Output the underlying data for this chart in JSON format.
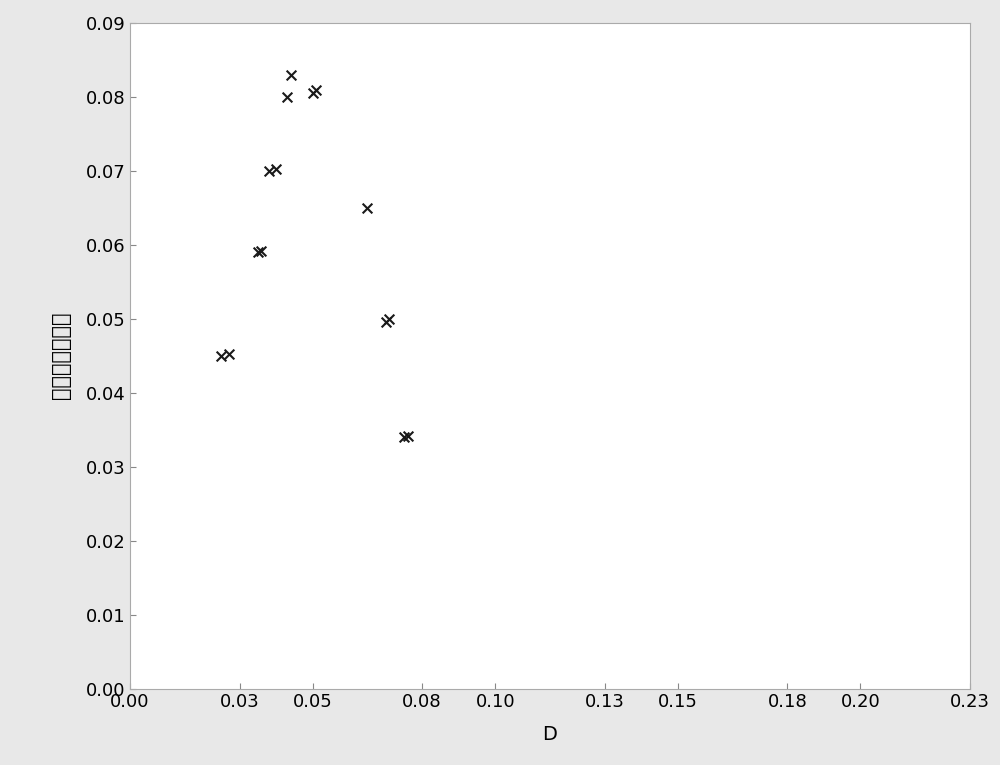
{
  "x": [
    0.025,
    0.027,
    0.035,
    0.036,
    0.038,
    0.04,
    0.043,
    0.044,
    0.05,
    0.051,
    0.065,
    0.07,
    0.071,
    0.075,
    0.076
  ],
  "y": [
    0.045,
    0.0452,
    0.059,
    0.0592,
    0.07,
    0.0702,
    0.08,
    0.083,
    0.0805,
    0.081,
    0.065,
    0.0495,
    0.05,
    0.034,
    0.0342
  ],
  "marker": "x",
  "marker_color": "#1a1a1a",
  "marker_size": 7,
  "marker_lw": 1.5,
  "xlabel": "D",
  "ylabel": "绝对禁带相对值",
  "xlim": [
    0.0,
    0.23
  ],
  "ylim": [
    0.0,
    0.09
  ],
  "xticks": [
    0.0,
    0.03,
    0.05,
    0.08,
    0.1,
    0.13,
    0.15,
    0.18,
    0.2,
    0.23
  ],
  "yticks": [
    0.0,
    0.01,
    0.02,
    0.03,
    0.04,
    0.05,
    0.06,
    0.07,
    0.08,
    0.09
  ],
  "background_color": "#e8e8e8",
  "plot_bg_color": "#ffffff",
  "xlabel_fontsize": 14,
  "ylabel_fontsize": 15,
  "tick_fontsize": 13,
  "spine_color": "#aaaaaa",
  "spine_lw": 0.8
}
